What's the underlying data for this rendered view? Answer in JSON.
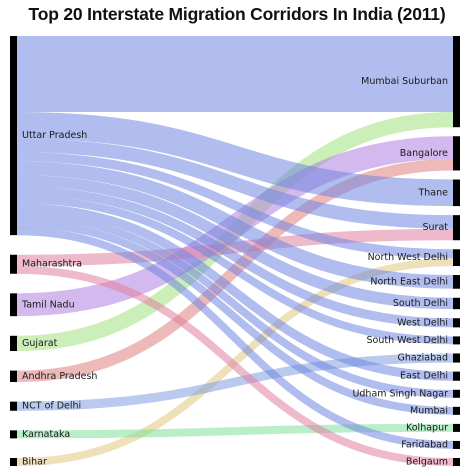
{
  "chart_data": {
    "type": "sankey",
    "title": "Top 20 Interstate Migration Corridors In India (2011)",
    "sources": [
      {
        "name": "Uttar Pradesh",
        "color": "#6f87e0"
      },
      {
        "name": "Maharashtra",
        "color": "#e07fa0"
      },
      {
        "name": "Tamil Nadu",
        "color": "#b07fe0"
      },
      {
        "name": "Gujarat",
        "color": "#a3e07f"
      },
      {
        "name": "Andhra Pradesh",
        "color": "#e07f7f"
      },
      {
        "name": "NCT of Delhi",
        "color": "#7f9fe0"
      },
      {
        "name": "Karnataka",
        "color": "#7fe09a"
      },
      {
        "name": "Bihar",
        "color": "#e0c97f"
      }
    ],
    "targets": [
      "Mumbai Suburban",
      "Bangalore",
      "Thane",
      "Surat",
      "North West Delhi",
      "North East Delhi",
      "South Delhi",
      "West Delhi",
      "South West Delhi",
      "Ghaziabad",
      "East Delhi",
      "Udham Singh Nagar",
      "Mumbai",
      "Kolhapur",
      "Faridabad",
      "Belgaum"
    ],
    "flows": [
      {
        "source": "Uttar Pradesh",
        "target": "Mumbai Suburban",
        "value": 10
      },
      {
        "source": "Gujarat",
        "target": "Mumbai Suburban",
        "value": 2
      },
      {
        "source": "Tamil Nadu",
        "target": "Bangalore",
        "value": 3
      },
      {
        "source": "Andhra Pradesh",
        "target": "Bangalore",
        "value": 1.5
      },
      {
        "source": "Uttar Pradesh",
        "target": "Thane",
        "value": 3.5
      },
      {
        "source": "Uttar Pradesh",
        "target": "Surat",
        "value": 1.8
      },
      {
        "source": "Maharashtra",
        "target": "Surat",
        "value": 1.5
      },
      {
        "source": "Uttar Pradesh",
        "target": "North West Delhi",
        "value": 1.2
      },
      {
        "source": "Bihar",
        "target": "North West Delhi",
        "value": 1.0
      },
      {
        "source": "Uttar Pradesh",
        "target": "North East Delhi",
        "value": 1.8
      },
      {
        "source": "Uttar Pradesh",
        "target": "South Delhi",
        "value": 1.5
      },
      {
        "source": "Uttar Pradesh",
        "target": "West Delhi",
        "value": 1.2
      },
      {
        "source": "Uttar Pradesh",
        "target": "South West Delhi",
        "value": 1.0
      },
      {
        "source": "NCT of Delhi",
        "target": "Ghaziabad",
        "value": 1.2
      },
      {
        "source": "Uttar Pradesh",
        "target": "East Delhi",
        "value": 1.2
      },
      {
        "source": "Uttar Pradesh",
        "target": "Udham Singh Nagar",
        "value": 1.0
      },
      {
        "source": "Uttar Pradesh",
        "target": "Mumbai",
        "value": 1.0
      },
      {
        "source": "Karnataka",
        "target": "Kolhapur",
        "value": 1.0
      },
      {
        "source": "Uttar Pradesh",
        "target": "Faridabad",
        "value": 1.0
      },
      {
        "source": "Maharashtra",
        "target": "Belgaum",
        "value": 1.0
      }
    ]
  }
}
